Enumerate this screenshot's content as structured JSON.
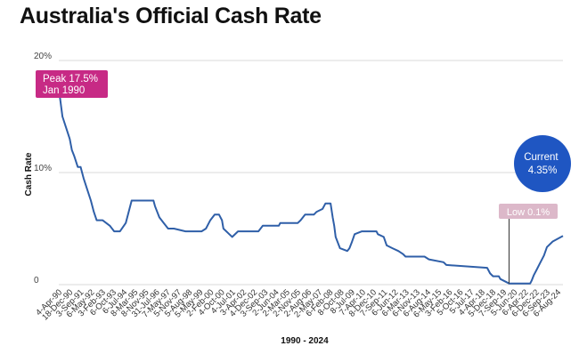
{
  "chart_data": {
    "type": "line",
    "title": "Australia's Official Cash Rate",
    "xlabel": "1990 - 2024",
    "ylabel": "Cash Rate",
    "ylim": [
      0,
      20
    ],
    "yticks": [
      "0",
      "10%",
      "20%"
    ],
    "grid": true,
    "line_color": "#2f5fa8",
    "x_tick_labels": [
      "4-Apr-90",
      "18-Dec-90",
      "3-Sep-91",
      "6-May-92",
      "3-Feb-93",
      "6-Oct-93",
      "6-Jul-94",
      "8-Mar-95",
      "8-Nov-95",
      "31-Jul-96",
      "7-May-97",
      "5-Nov-97",
      "5-Aug-98",
      "5-May-99",
      "2-Feb-00",
      "4-Oct-00",
      "4-Jul-01",
      "3-Apr-02",
      "4-Dec-02",
      "3-Sep-03",
      "2-Jun-04",
      "2-Mar-05",
      "2-Nov-05",
      "2-Aug-06",
      "2-May-07",
      "6-Feb-08",
      "8-Oct-08",
      "8-Jul-09",
      "7-Apr-10",
      "8-Dec-10",
      "7-Sep-11",
      "6-Jun-12",
      "6-Mar-13",
      "6-Nov-13",
      "6-Aug-14",
      "6-May-15",
      "3-Feb-16",
      "5-Oct-16",
      "5-Jul-17",
      "4-Apr-18",
      "5-Dec-18",
      "7-Sep-19",
      "5-Jun-20",
      "6-Apr-22",
      "6-Dec-22",
      "6-Sep-23",
      "6-Aug-24"
    ],
    "series": [
      {
        "x": [
          1990.0,
          1990.25,
          1990.5,
          1990.75,
          1990.9,
          1991.05,
          1991.3,
          1991.5,
          1991.7,
          1991.95,
          1992.2,
          1992.4,
          1992.6,
          1993.0,
          1993.5,
          1993.8,
          1994.2,
          1994.6,
          1994.8,
          1995.0,
          1995.1,
          1996.5,
          1996.6,
          1996.9,
          1997.2,
          1997.5,
          1997.9,
          1998.7,
          1999.8,
          2000.1,
          2000.4,
          2000.7,
          2001.0,
          2001.2,
          2001.3,
          2001.7,
          2001.9,
          2002.3,
          2002.5,
          2003.4,
          2003.7,
          2004.0,
          2005.1,
          2005.2,
          2006.4,
          2006.6,
          2006.9,
          2007.5,
          2007.7,
          2008.1,
          2008.3,
          2008.65,
          2008.8,
          2008.9,
          2009.0,
          2009.3,
          2009.8,
          2009.95,
          2010.1,
          2010.3,
          2010.8,
          2011.8,
          2011.9,
          2012.3,
          2012.5,
          2012.9,
          2013.3,
          2013.6,
          2013.8,
          2015.1,
          2015.4,
          2016.4,
          2016.6,
          2019.4,
          2019.6,
          2019.8,
          2020.2,
          2020.3,
          2020.9,
          2022.35,
          2022.45,
          2022.6,
          2022.8,
          2023.0,
          2023.3,
          2023.5,
          2023.9,
          2024.6
        ],
        "y": [
          17.5,
          15.0,
          14.0,
          13.0,
          12.0,
          11.5,
          10.5,
          10.5,
          9.5,
          8.5,
          7.5,
          6.5,
          5.75,
          5.75,
          5.25,
          4.75,
          4.75,
          5.5,
          6.5,
          7.5,
          7.5,
          7.5,
          7.0,
          6.0,
          5.5,
          5.0,
          5.0,
          4.75,
          4.75,
          5.0,
          5.75,
          6.25,
          6.25,
          5.75,
          5.0,
          4.5,
          4.25,
          4.75,
          4.75,
          4.75,
          4.75,
          5.25,
          5.25,
          5.5,
          5.5,
          5.75,
          6.25,
          6.25,
          6.5,
          6.75,
          7.25,
          7.25,
          6.0,
          5.25,
          4.25,
          3.25,
          3.0,
          3.25,
          3.75,
          4.5,
          4.75,
          4.75,
          4.5,
          4.25,
          3.5,
          3.25,
          3.0,
          2.75,
          2.5,
          2.5,
          2.25,
          2.0,
          1.75,
          1.5,
          1.0,
          0.75,
          0.75,
          0.5,
          0.1,
          0.1,
          0.35,
          0.85,
          1.35,
          1.85,
          2.6,
          3.35,
          3.85,
          4.35
        ]
      }
    ],
    "annotations": [
      {
        "text": "Peak 17.5%\nJan 1990",
        "x": 1990.0,
        "y": 17.5,
        "color": "#c72a85"
      },
      {
        "text": "Current\n4.35%",
        "x": 2024.6,
        "y": 4.35,
        "color": "#1f56c2"
      },
      {
        "text": "Low 0.1%",
        "x": 2020.9,
        "y": 0.1,
        "color": "#dcb8c9"
      }
    ]
  }
}
